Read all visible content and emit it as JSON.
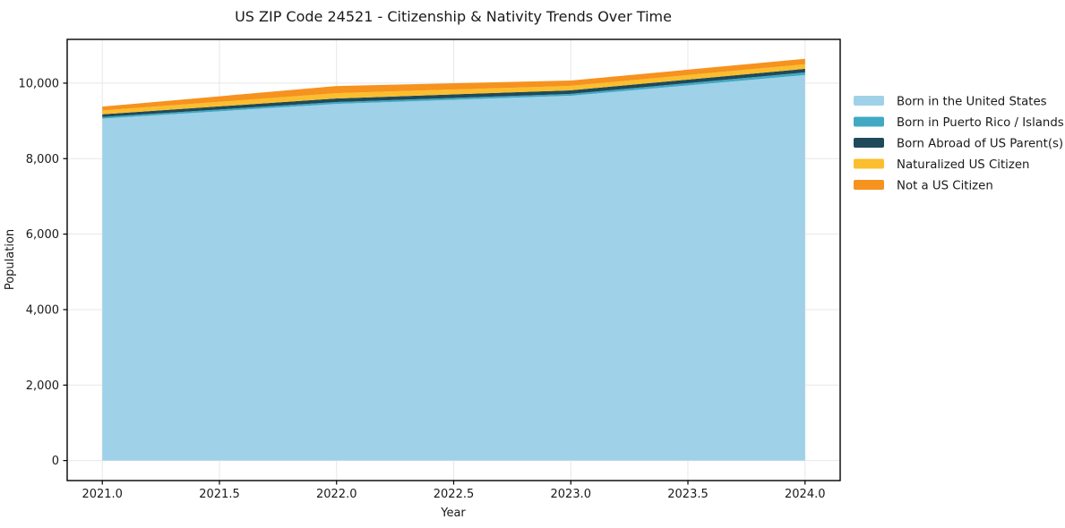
{
  "chart_data": {
    "type": "area",
    "stacked": true,
    "title": "US ZIP Code 24521 - Citizenship & Nativity Trends Over Time",
    "xlabel": "Year",
    "ylabel": "Population",
    "x": [
      2021,
      2022,
      2023,
      2024
    ],
    "series": [
      {
        "name": "Born in the United States",
        "color": "#9FD1E8",
        "values": [
          9060,
          9450,
          9665,
          10215
        ]
      },
      {
        "name": "Born in Puerto Rico / Islands",
        "color": "#41A9C4",
        "values": [
          45,
          50,
          50,
          70
        ]
      },
      {
        "name": "Born Abroad of US Parent(s)",
        "color": "#1F4A5A",
        "values": [
          70,
          95,
          95,
          95
        ]
      },
      {
        "name": "Naturalized US Citizen",
        "color": "#FBBE2E",
        "values": [
          100,
          140,
          120,
          120
        ]
      },
      {
        "name": "Not a US Citizen",
        "color": "#F6921E",
        "values": [
          105,
          190,
          140,
          145
        ]
      }
    ],
    "x_tick_labels": [
      "2021.0",
      "2021.5",
      "2022.0",
      "2022.5",
      "2023.0",
      "2023.5",
      "2024.0"
    ],
    "x_tick_values": [
      2021,
      2021.5,
      2022,
      2022.5,
      2023,
      2023.5,
      2024
    ],
    "y_tick_labels": [
      "0",
      "2,000",
      "4,000",
      "6,000",
      "8,000",
      "10,000"
    ],
    "y_tick_values": [
      0,
      2000,
      4000,
      6000,
      8000,
      10000
    ],
    "xlim": [
      2020.85,
      2024.15
    ],
    "ylim": [
      -530,
      11160
    ],
    "grid": true,
    "legend_position": "right-outside"
  },
  "style": {
    "background": "#ffffff",
    "grid_color": "#e7e7e7",
    "spine_color": "#000000",
    "text_color": "#1a1a1a"
  }
}
